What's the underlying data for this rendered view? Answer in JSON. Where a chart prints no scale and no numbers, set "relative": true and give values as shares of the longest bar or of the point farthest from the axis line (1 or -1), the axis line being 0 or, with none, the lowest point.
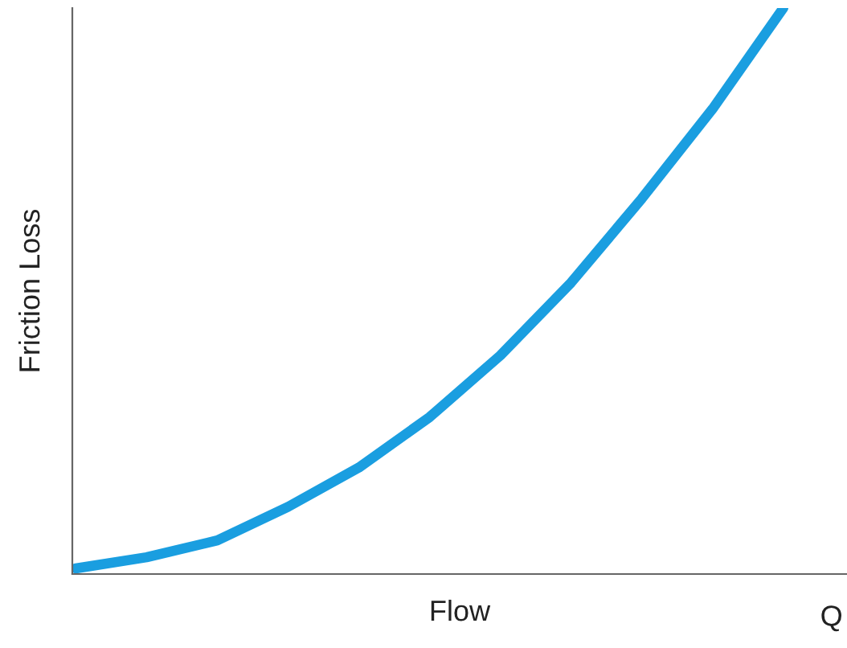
{
  "chart_data": {
    "type": "line",
    "relative": true,
    "xlabel": "Flow",
    "ylabel": "Friction Loss",
    "annotations": [
      "Q"
    ],
    "categories": [
      null,
      null,
      null,
      null,
      null,
      null,
      null,
      null,
      null,
      null,
      null
    ],
    "series": [
      {
        "color": "#1a9ee0",
        "values": [
          0.0,
          0.02,
          0.05,
          0.11,
          0.18,
          0.27,
          0.38,
          0.51,
          0.66,
          0.82,
          1.0
        ]
      }
    ],
    "grid": false,
    "legend": false,
    "marker": "none",
    "line_style": "solid"
  }
}
